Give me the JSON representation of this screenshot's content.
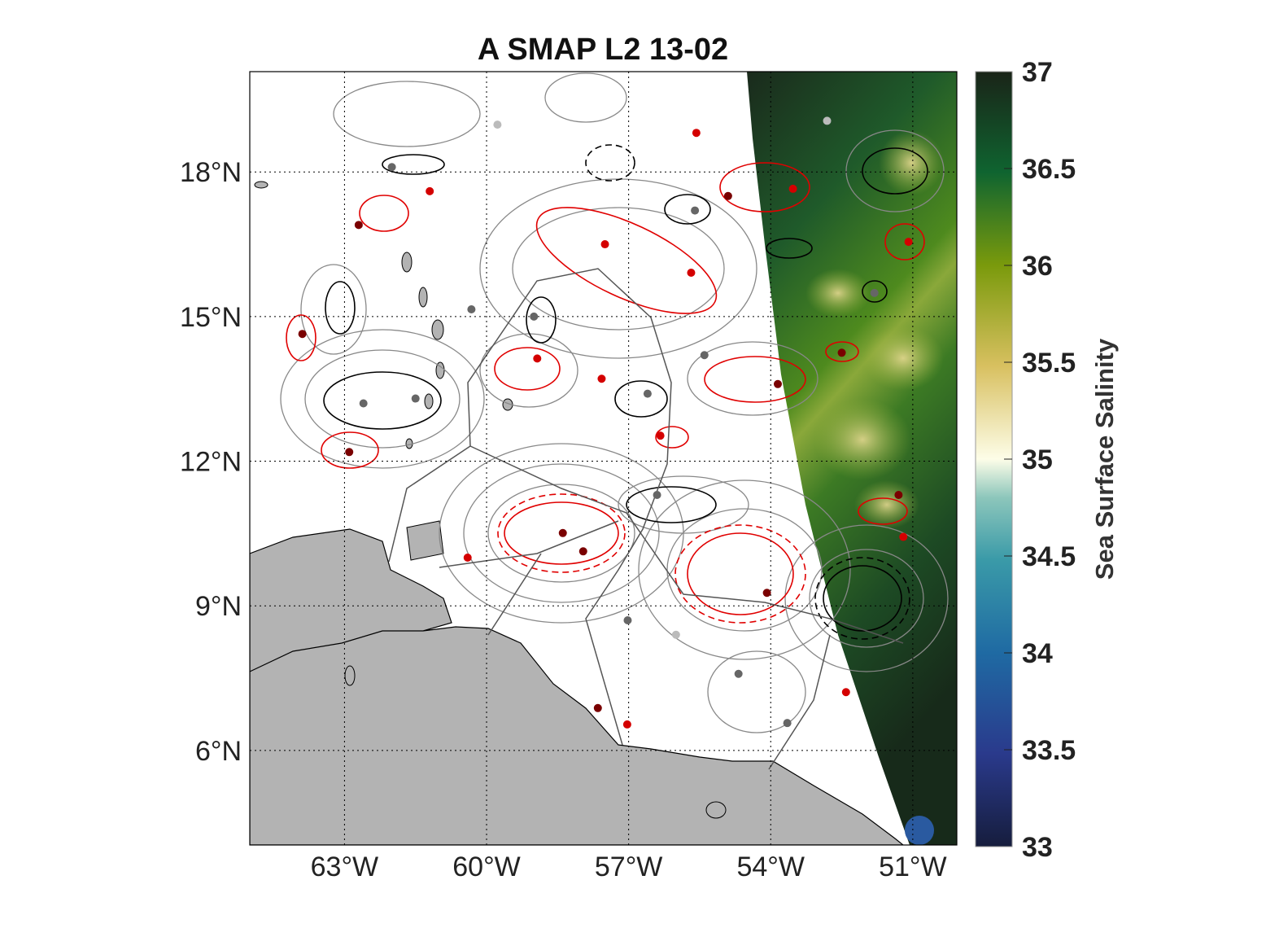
{
  "chart_data": {
    "type": "map",
    "title": "A SMAP L2 13-02",
    "x_ticks": [
      "63°W",
      "60°W",
      "57°W",
      "54°W",
      "51°W"
    ],
    "x_tick_values": [
      -63,
      -60,
      -57,
      -54,
      -51
    ],
    "y_ticks": [
      "18°N",
      "15°N",
      "12°N",
      "9°N",
      "6°N"
    ],
    "y_tick_values": [
      18,
      15,
      12,
      9,
      6
    ],
    "lon_range": [
      -65.0,
      -50.07
    ],
    "lat_range": [
      4.04,
      20.08
    ],
    "grid": "dotted",
    "colorbar": {
      "label": "Sea Surface Salinity",
      "ticks": [
        "33",
        "33.5",
        "34",
        "34.5",
        "35",
        "35.5",
        "36",
        "36.5",
        "37"
      ],
      "range": [
        33,
        37
      ],
      "colors": [
        "#161d3d",
        "#2a3a8c",
        "#1f6aa3",
        "#3a9aa8",
        "#8cc6bb",
        "#fdfde8",
        "#d8c060",
        "#7a9a0c",
        "#0f6430",
        "#1a2418"
      ]
    },
    "colors": {
      "land": "#b3b3b3",
      "red": "#d40000",
      "dark_red": "#7a0000",
      "gray": "#666666",
      "light_gray": "#bbbbbb",
      "contour": "#888888"
    },
    "points": [
      {
        "lon": -51.09,
        "lat": 16.55,
        "c": "red"
      },
      {
        "lon": -58.93,
        "lat": 14.13,
        "c": "red"
      },
      {
        "lon": -58.39,
        "lat": 10.51,
        "c": "dark_red"
      },
      {
        "lon": -57.96,
        "lat": 10.13,
        "c": "dark_red"
      },
      {
        "lon": -54.08,
        "lat": 9.27,
        "c": "dark_red"
      },
      {
        "lon": -55.68,
        "lat": 15.91,
        "c": "red"
      },
      {
        "lon": -53.53,
        "lat": 17.65,
        "c": "red"
      },
      {
        "lon": -63.89,
        "lat": 14.64,
        "c": "dark_red"
      },
      {
        "lon": -62.9,
        "lat": 12.19,
        "c": "dark_red"
      },
      {
        "lon": -52.41,
        "lat": 7.21,
        "c": "red"
      },
      {
        "lon": -57.02,
        "lat": 8.7,
        "c": "gray"
      },
      {
        "lon": -51.81,
        "lat": 15.49,
        "c": "gray"
      },
      {
        "lon": -62.0,
        "lat": 18.1,
        "c": "gray"
      },
      {
        "lon": -59.77,
        "lat": 18.98,
        "c": "light_gray"
      },
      {
        "lon": -55.57,
        "lat": 18.81,
        "c": "red"
      },
      {
        "lon": -52.5,
        "lat": 14.25,
        "c": "dark_red"
      },
      {
        "lon": -53.85,
        "lat": 13.6,
        "c": "dark_red"
      },
      {
        "lon": -56.33,
        "lat": 12.53,
        "c": "red"
      },
      {
        "lon": -51.2,
        "lat": 10.43,
        "c": "red"
      },
      {
        "lon": -53.65,
        "lat": 6.57,
        "c": "gray"
      },
      {
        "lon": -57.65,
        "lat": 6.88,
        "c": "dark_red"
      },
      {
        "lon": -57.03,
        "lat": 6.54,
        "c": "red"
      },
      {
        "lon": -54.68,
        "lat": 7.59,
        "c": "gray"
      },
      {
        "lon": -52.81,
        "lat": 19.06,
        "c": "light_gray"
      },
      {
        "lon": -60.32,
        "lat": 15.15,
        "c": "gray"
      },
      {
        "lon": -57.57,
        "lat": 13.71,
        "c": "red"
      },
      {
        "lon": -62.6,
        "lat": 13.2,
        "c": "gray"
      },
      {
        "lon": -61.5,
        "lat": 13.3,
        "c": "gray"
      },
      {
        "lon": -56.6,
        "lat": 13.4,
        "c": "gray"
      },
      {
        "lon": -55.4,
        "lat": 14.2,
        "c": "gray"
      },
      {
        "lon": -56.4,
        "lat": 11.3,
        "c": "gray"
      },
      {
        "lon": -56.0,
        "lat": 8.4,
        "c": "light_gray"
      },
      {
        "lon": -62.7,
        "lat": 16.9,
        "c": "dark_red"
      },
      {
        "lon": -61.2,
        "lat": 17.6,
        "c": "red"
      },
      {
        "lon": -57.5,
        "lat": 16.5,
        "c": "red"
      },
      {
        "lon": -54.9,
        "lat": 17.5,
        "c": "dark_red"
      },
      {
        "lon": -59.0,
        "lat": 15.0,
        "c": "gray"
      },
      {
        "lon": -60.4,
        "lat": 10.0,
        "c": "red"
      },
      {
        "lon": -55.6,
        "lat": 17.2,
        "c": "gray"
      },
      {
        "lon": -51.3,
        "lat": 11.3,
        "c": "dark_red"
      }
    ]
  }
}
